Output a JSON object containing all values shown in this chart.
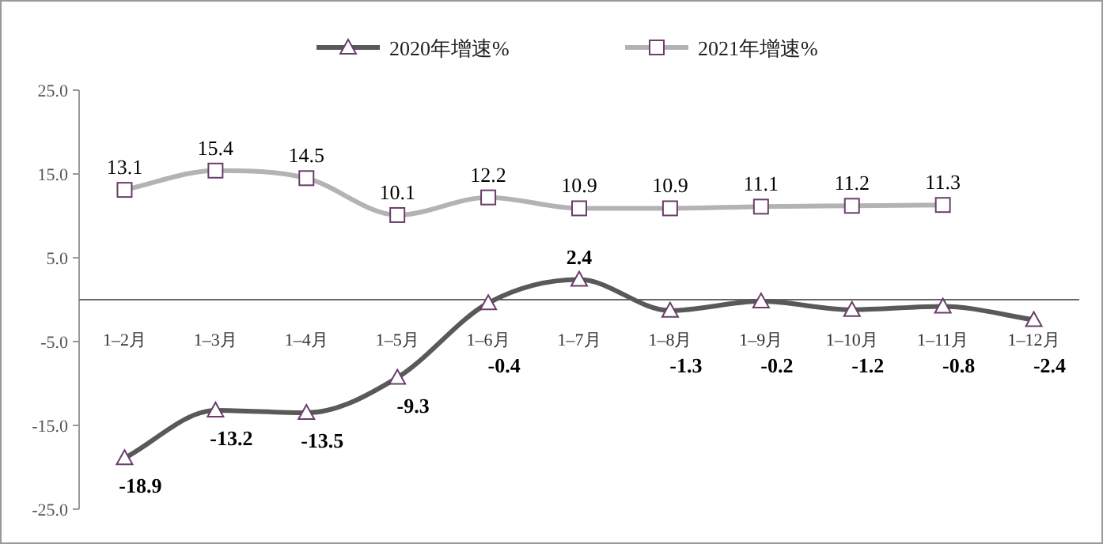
{
  "chart_data": {
    "type": "line",
    "categories": [
      "1–2月",
      "1–3月",
      "1–4月",
      "1–5月",
      "1–6月",
      "1–7月",
      "1–8月",
      "1–9月",
      "1–10月",
      "1–11月",
      "1–12月"
    ],
    "series": [
      {
        "name": "2020年增速%",
        "color": "#595959",
        "marker": "triangle",
        "values": [
          -18.9,
          -13.2,
          -13.5,
          -9.3,
          -0.4,
          2.4,
          -1.3,
          -0.2,
          -1.2,
          -0.8,
          -2.4
        ]
      },
      {
        "name": "2021年增速%",
        "color": "#b3b3b3",
        "marker": "square",
        "values": [
          13.1,
          15.4,
          14.5,
          10.1,
          12.2,
          10.9,
          10.9,
          11.1,
          11.2,
          11.3,
          null
        ]
      }
    ],
    "ylim": [
      -25,
      25
    ],
    "yticks": [
      {
        "value": -25,
        "label": "-25.0"
      },
      {
        "value": -15,
        "label": "-15.0"
      },
      {
        "value": -5,
        "label": "-5.0"
      },
      {
        "value": 5,
        "label": "5.0"
      },
      {
        "value": 15,
        "label": "15.0"
      },
      {
        "value": 25,
        "label": "25.0"
      }
    ],
    "data_labels": true,
    "legend": "top",
    "grid": false
  }
}
